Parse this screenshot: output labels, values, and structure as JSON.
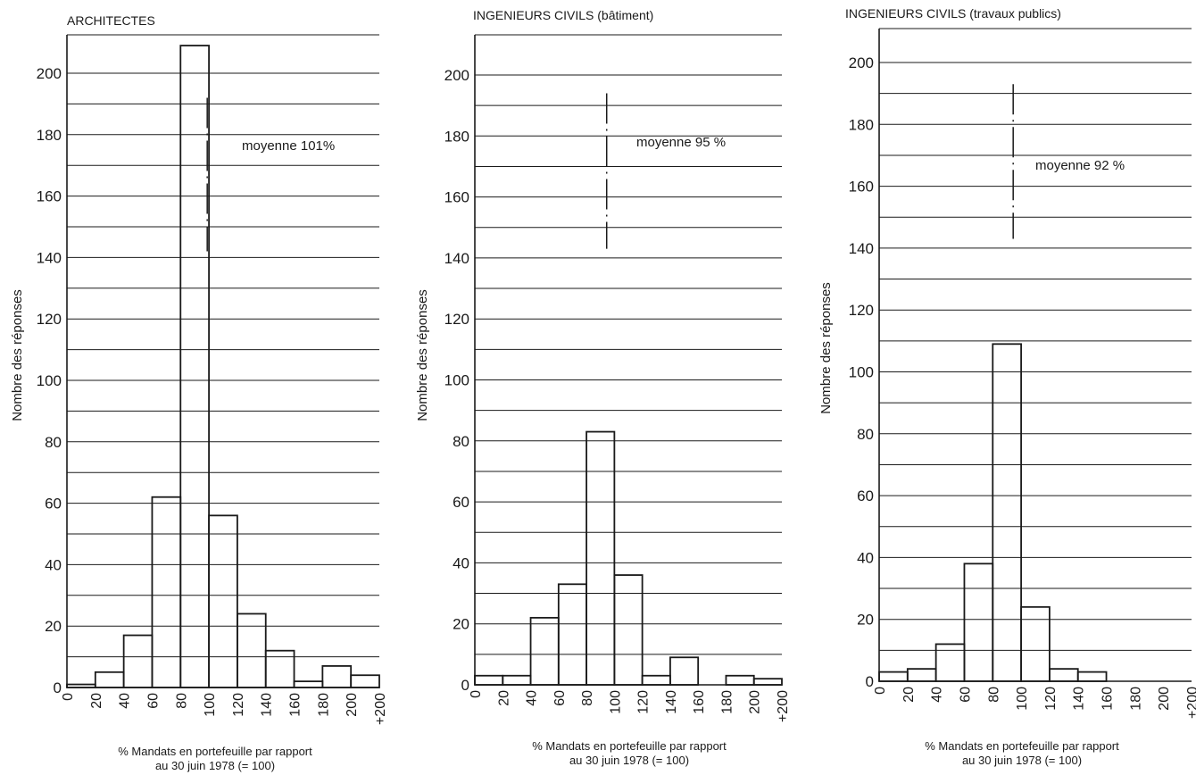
{
  "x_tick_labels": [
    "0",
    "20",
    "40",
    "60",
    "80",
    "100",
    "120",
    "140",
    "160",
    "180",
    "200",
    "+200"
  ],
  "xlabel_line1": "% Mandats en portefeuille par rapport",
  "xlabel_line2": "au 30 juin 1978 (= 100)",
  "ylabel": "Nombre des réponses",
  "y_tick_labels": [
    "0",
    "20",
    "40",
    "60",
    "80",
    "100",
    "120",
    "140",
    "160",
    "180",
    "200"
  ],
  "colors": {
    "ink": "#1a1a1a",
    "background": "#ffffff"
  },
  "chart_data": [
    {
      "type": "bar",
      "title": "ARCHITECTES",
      "xlabel": "% Mandats en portefeuille par rapport au 30 juin 1978 (= 100)",
      "ylabel": "Nombre des réponses",
      "ylim": [
        0,
        210
      ],
      "grid": true,
      "categories": [
        "0–20",
        "20–40",
        "40–60",
        "60–80",
        "80–100",
        "100–120",
        "120–140",
        "140–160",
        "160–180",
        "180–200",
        "+200"
      ],
      "values": [
        1,
        5,
        17,
        62,
        209,
        56,
        24,
        12,
        2,
        7,
        4
      ],
      "mean_label": "moyenne 101%",
      "mean_line": [
        142,
        192
      ]
    },
    {
      "type": "bar",
      "title": "INGENIEURS CIVILS (bâtiment)",
      "xlabel": "% Mandats en portefeuille par rapport au 30 juin 1978 (= 100)",
      "ylabel": "Nombre des réponses",
      "ylim": [
        0,
        210
      ],
      "grid": true,
      "categories": [
        "0–20",
        "20–40",
        "40–60",
        "60–80",
        "80–100",
        "100–120",
        "120–140",
        "140–160",
        "160–180",
        "180–200",
        "+200"
      ],
      "values": [
        3,
        3,
        22,
        33,
        83,
        36,
        3,
        9,
        0,
        3,
        2
      ],
      "mean_label": "moyenne 95 %",
      "mean_line": [
        143,
        194
      ]
    },
    {
      "type": "bar",
      "title": "INGENIEURS CIVILS (travaux publics)",
      "xlabel": "% Mandats en portefeuille par rapport au 30 juin 1978 (= 100)",
      "ylabel": "Nombre des réponses",
      "ylim": [
        0,
        210
      ],
      "grid": true,
      "categories": [
        "0–20",
        "20–40",
        "40–60",
        "60–80",
        "80–100",
        "100–120",
        "120–140",
        "140–160",
        "160–180",
        "180–200",
        "+200"
      ],
      "values": [
        3,
        4,
        12,
        38,
        109,
        24,
        4,
        3,
        0,
        0,
        0
      ],
      "mean_label": "moyenne 92 %",
      "mean_line": [
        143,
        193
      ]
    }
  ]
}
